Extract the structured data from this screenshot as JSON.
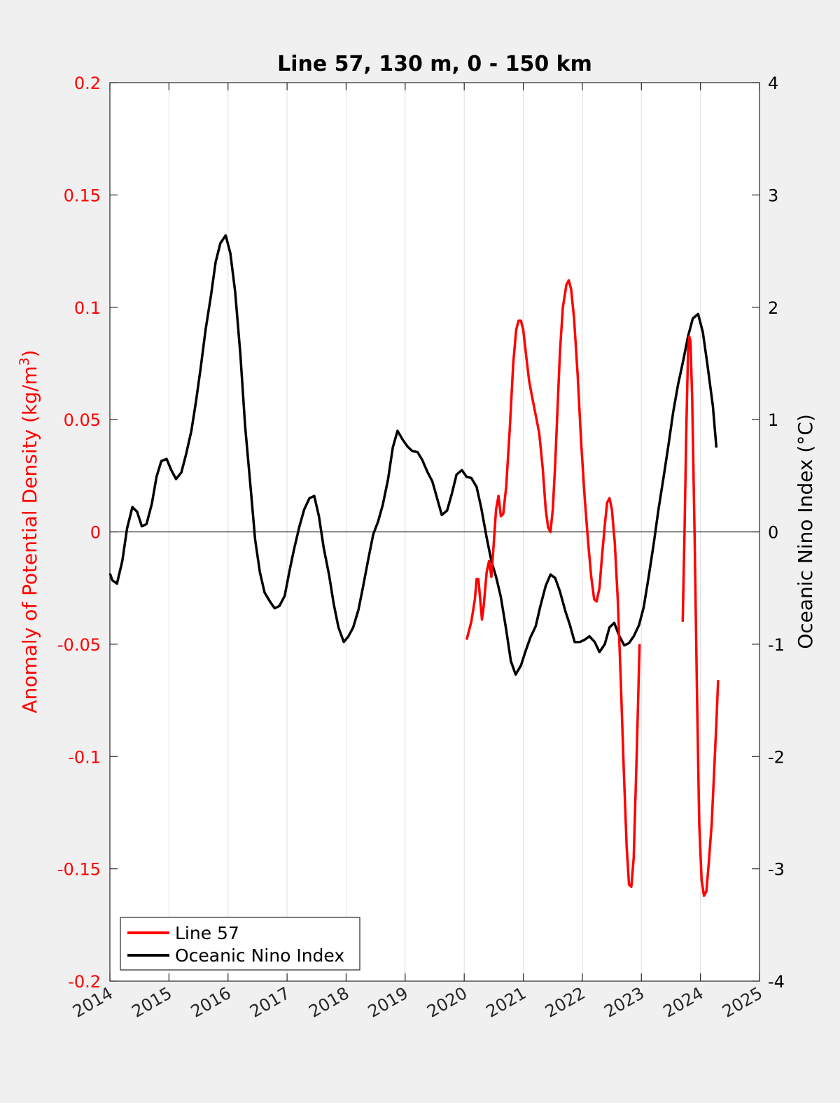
{
  "chart_data": {
    "type": "line",
    "title": "Line 57, 130 m, 0 - 150 km",
    "xlabel": "",
    "ylabel_left": "Anomaly of Potential Density (kg/m",
    "ylabel_left_sup": "3",
    "ylabel_left_close": ")",
    "ylabel_right": "Oceanic Nino Index (°C)",
    "xlim": [
      2014,
      2025
    ],
    "ylim_left": [
      -0.2,
      0.2
    ],
    "ylim_right": [
      -4,
      4
    ],
    "x_ticks": [
      "2014",
      "2015",
      "2016",
      "2017",
      "2018",
      "2019",
      "2020",
      "2021",
      "2022",
      "2023",
      "2024",
      "2025"
    ],
    "y_ticks_left": [
      "0.2",
      "0.15",
      "0.1",
      "0.05",
      "0",
      "-0.05",
      "-0.1",
      "-0.15",
      "-0.2"
    ],
    "y_ticks_right": [
      "4",
      "3",
      "2",
      "1",
      "0",
      "-1",
      "-2",
      "-3",
      "-4"
    ],
    "grid": "vertical",
    "zero_line": true,
    "legend_position": "bottom-left",
    "colors": {
      "line57": "#ff0000",
      "oni": "#000000",
      "left_axis": "#ff0000",
      "right_axis": "#000000"
    },
    "series": [
      {
        "name": "Line 57",
        "axis": "left",
        "segments": [
          [
            [
              2020.04,
              -0.048
            ],
            [
              2020.12,
              -0.04
            ],
            [
              2020.18,
              -0.03
            ],
            [
              2020.21,
              -0.021
            ],
            [
              2020.24,
              -0.021
            ],
            [
              2020.27,
              -0.03
            ],
            [
              2020.3,
              -0.039
            ],
            [
              2020.33,
              -0.033
            ],
            [
              2020.38,
              -0.018
            ],
            [
              2020.42,
              -0.013
            ],
            [
              2020.46,
              -0.02
            ],
            [
              2020.5,
              -0.005
            ],
            [
              2020.54,
              0.01
            ],
            [
              2020.58,
              0.016
            ],
            [
              2020.62,
              0.007
            ],
            [
              2020.66,
              0.008
            ],
            [
              2020.71,
              0.02
            ],
            [
              2020.77,
              0.045
            ],
            [
              2020.83,
              0.075
            ],
            [
              2020.88,
              0.09
            ],
            [
              2020.92,
              0.094
            ],
            [
              2020.96,
              0.094
            ],
            [
              2021.0,
              0.09
            ],
            [
              2021.05,
              0.078
            ],
            [
              2021.1,
              0.067
            ],
            [
              2021.15,
              0.06
            ],
            [
              2021.21,
              0.052
            ],
            [
              2021.27,
              0.044
            ],
            [
              2021.33,
              0.028
            ],
            [
              2021.38,
              0.01
            ],
            [
              2021.42,
              0.002
            ],
            [
              2021.46,
              0.0
            ],
            [
              2021.5,
              0.01
            ],
            [
              2021.54,
              0.03
            ],
            [
              2021.58,
              0.055
            ],
            [
              2021.62,
              0.08
            ],
            [
              2021.67,
              0.1
            ],
            [
              2021.73,
              0.11
            ],
            [
              2021.77,
              0.112
            ],
            [
              2021.81,
              0.108
            ],
            [
              2021.86,
              0.095
            ],
            [
              2021.92,
              0.07
            ],
            [
              2021.98,
              0.04
            ],
            [
              2022.04,
              0.015
            ],
            [
              2022.1,
              -0.005
            ],
            [
              2022.15,
              -0.02
            ],
            [
              2022.2,
              -0.03
            ],
            [
              2022.24,
              -0.031
            ],
            [
              2022.29,
              -0.025
            ],
            [
              2022.33,
              -0.012
            ],
            [
              2022.38,
              0.003
            ],
            [
              2022.42,
              0.013
            ],
            [
              2022.46,
              0.015
            ],
            [
              2022.5,
              0.01
            ],
            [
              2022.55,
              -0.005
            ],
            [
              2022.6,
              -0.03
            ],
            [
              2022.65,
              -0.065
            ],
            [
              2022.7,
              -0.105
            ],
            [
              2022.75,
              -0.14
            ],
            [
              2022.79,
              -0.157
            ],
            [
              2022.83,
              -0.158
            ],
            [
              2022.87,
              -0.145
            ],
            [
              2022.92,
              -0.1
            ],
            [
              2022.97,
              -0.05
            ]
          ],
          [
            [
              2023.7,
              -0.04
            ],
            [
              2023.73,
              0.0
            ],
            [
              2023.76,
              0.045
            ],
            [
              2023.79,
              0.08
            ],
            [
              2023.81,
              0.087
            ],
            [
              2023.83,
              0.085
            ],
            [
              2023.86,
              0.06
            ],
            [
              2023.9,
              0.0
            ],
            [
              2023.94,
              -0.07
            ],
            [
              2023.98,
              -0.13
            ],
            [
              2024.02,
              -0.155
            ],
            [
              2024.06,
              -0.162
            ],
            [
              2024.1,
              -0.16
            ],
            [
              2024.14,
              -0.148
            ],
            [
              2024.19,
              -0.13
            ],
            [
              2024.23,
              -0.108
            ],
            [
              2024.27,
              -0.085
            ],
            [
              2024.3,
              -0.066
            ]
          ]
        ]
      },
      {
        "name": "Oceanic Nino Index",
        "axis": "right",
        "segments": [
          [
            [
              2014.0,
              -0.37
            ],
            [
              2014.04,
              -0.43
            ],
            [
              2014.12,
              -0.46
            ],
            [
              2014.21,
              -0.26
            ],
            [
              2014.29,
              0.03
            ],
            [
              2014.38,
              0.22
            ],
            [
              2014.46,
              0.18
            ],
            [
              2014.54,
              0.05
            ],
            [
              2014.62,
              0.07
            ],
            [
              2014.71,
              0.25
            ],
            [
              2014.79,
              0.49
            ],
            [
              2014.87,
              0.63
            ],
            [
              2014.96,
              0.65
            ],
            [
              2015.04,
              0.55
            ],
            [
              2015.12,
              0.47
            ],
            [
              2015.21,
              0.53
            ],
            [
              2015.29,
              0.69
            ],
            [
              2015.38,
              0.9
            ],
            [
              2015.46,
              1.17
            ],
            [
              2015.54,
              1.47
            ],
            [
              2015.62,
              1.8
            ],
            [
              2015.71,
              2.1
            ],
            [
              2015.79,
              2.4
            ],
            [
              2015.87,
              2.57
            ],
            [
              2015.96,
              2.64
            ],
            [
              2016.04,
              2.48
            ],
            [
              2016.12,
              2.14
            ],
            [
              2016.21,
              1.58
            ],
            [
              2016.29,
              0.94
            ],
            [
              2016.38,
              0.41
            ],
            [
              2016.46,
              -0.07
            ],
            [
              2016.54,
              -0.36
            ],
            [
              2016.62,
              -0.54
            ],
            [
              2016.71,
              -0.62
            ],
            [
              2016.79,
              -0.68
            ],
            [
              2016.87,
              -0.66
            ],
            [
              2016.96,
              -0.57
            ],
            [
              2017.04,
              -0.35
            ],
            [
              2017.12,
              -0.15
            ],
            [
              2017.21,
              0.05
            ],
            [
              2017.29,
              0.2
            ],
            [
              2017.38,
              0.3
            ],
            [
              2017.46,
              0.32
            ],
            [
              2017.54,
              0.14
            ],
            [
              2017.62,
              -0.14
            ],
            [
              2017.71,
              -0.38
            ],
            [
              2017.79,
              -0.64
            ],
            [
              2017.87,
              -0.85
            ],
            [
              2017.96,
              -0.98
            ],
            [
              2018.04,
              -0.93
            ],
            [
              2018.12,
              -0.85
            ],
            [
              2018.21,
              -0.69
            ],
            [
              2018.29,
              -0.48
            ],
            [
              2018.38,
              -0.23
            ],
            [
              2018.46,
              -0.02
            ],
            [
              2018.54,
              0.09
            ],
            [
              2018.62,
              0.24
            ],
            [
              2018.71,
              0.47
            ],
            [
              2018.79,
              0.75
            ],
            [
              2018.87,
              0.9
            ],
            [
              2018.96,
              0.82
            ],
            [
              2019.04,
              0.76
            ],
            [
              2019.12,
              0.72
            ],
            [
              2019.21,
              0.71
            ],
            [
              2019.29,
              0.64
            ],
            [
              2019.38,
              0.53
            ],
            [
              2019.46,
              0.45
            ],
            [
              2019.54,
              0.3
            ],
            [
              2019.62,
              0.15
            ],
            [
              2019.71,
              0.19
            ],
            [
              2019.79,
              0.34
            ],
            [
              2019.87,
              0.51
            ],
            [
              2019.96,
              0.55
            ],
            [
              2020.04,
              0.49
            ],
            [
              2020.12,
              0.48
            ],
            [
              2020.21,
              0.4
            ],
            [
              2020.29,
              0.21
            ],
            [
              2020.38,
              -0.05
            ],
            [
              2020.46,
              -0.26
            ],
            [
              2020.54,
              -0.4
            ],
            [
              2020.62,
              -0.58
            ],
            [
              2020.71,
              -0.87
            ],
            [
              2020.79,
              -1.15
            ],
            [
              2020.87,
              -1.27
            ],
            [
              2020.96,
              -1.19
            ],
            [
              2021.04,
              -1.06
            ],
            [
              2021.12,
              -0.94
            ],
            [
              2021.21,
              -0.84
            ],
            [
              2021.29,
              -0.66
            ],
            [
              2021.38,
              -0.48
            ],
            [
              2021.46,
              -0.38
            ],
            [
              2021.54,
              -0.41
            ],
            [
              2021.62,
              -0.53
            ],
            [
              2021.71,
              -0.7
            ],
            [
              2021.79,
              -0.83
            ],
            [
              2021.87,
              -0.98
            ],
            [
              2021.96,
              -0.98
            ],
            [
              2022.04,
              -0.96
            ],
            [
              2022.12,
              -0.93
            ],
            [
              2022.21,
              -0.98
            ],
            [
              2022.29,
              -1.07
            ],
            [
              2022.38,
              -1.0
            ],
            [
              2022.46,
              -0.85
            ],
            [
              2022.54,
              -0.81
            ],
            [
              2022.62,
              -0.92
            ],
            [
              2022.71,
              -1.01
            ],
            [
              2022.79,
              -0.99
            ],
            [
              2022.87,
              -0.93
            ],
            [
              2022.96,
              -0.83
            ],
            [
              2023.04,
              -0.67
            ],
            [
              2023.12,
              -0.41
            ],
            [
              2023.21,
              -0.1
            ],
            [
              2023.29,
              0.2
            ],
            [
              2023.38,
              0.5
            ],
            [
              2023.46,
              0.78
            ],
            [
              2023.54,
              1.07
            ],
            [
              2023.62,
              1.31
            ],
            [
              2023.71,
              1.53
            ],
            [
              2023.79,
              1.74
            ],
            [
              2023.87,
              1.9
            ],
            [
              2023.96,
              1.94
            ],
            [
              2024.04,
              1.78
            ],
            [
              2024.12,
              1.48
            ],
            [
              2024.21,
              1.12
            ],
            [
              2024.27,
              0.75
            ]
          ]
        ]
      }
    ]
  }
}
